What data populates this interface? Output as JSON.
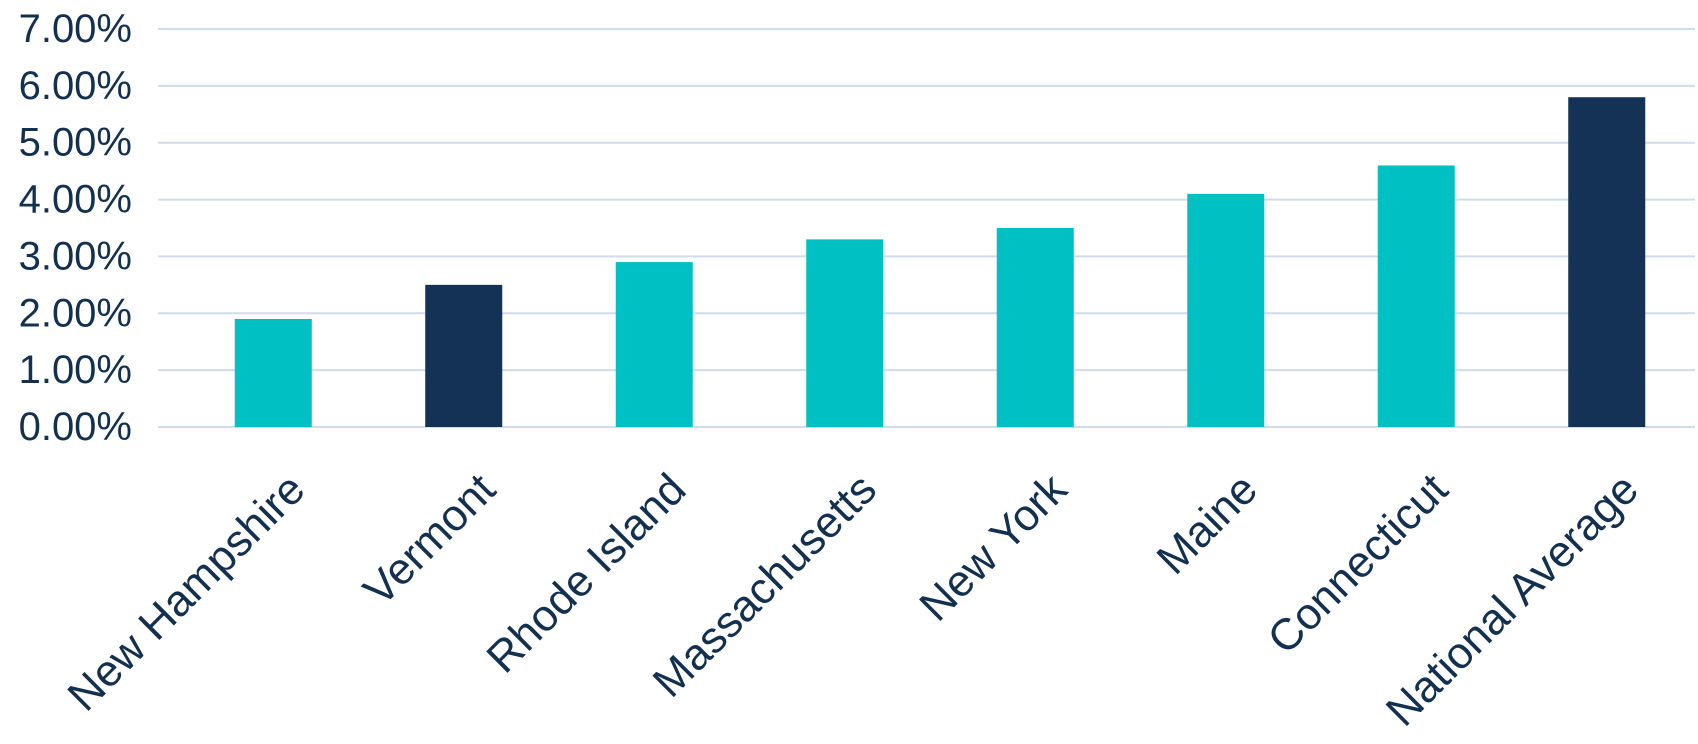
{
  "chart_data": {
    "type": "bar",
    "categories": [
      "New Hampshire",
      "Vermont",
      "Rhode Island",
      "Massachusetts",
      "New York",
      "Maine",
      "Connecticut",
      "National Average"
    ],
    "values": [
      1.9,
      2.5,
      2.9,
      3.3,
      3.5,
      4.1,
      4.6,
      5.8
    ],
    "value_unit": "percent",
    "bar_colors": [
      "#00c0c3",
      "#133255",
      "#00c0c3",
      "#00c0c3",
      "#00c0c3",
      "#00c0c3",
      "#00c0c3",
      "#133255"
    ],
    "highlighted_categories": [
      "Vermont",
      "National Average"
    ],
    "y_ticks": [
      "0.00%",
      "1.00%",
      "2.00%",
      "3.00%",
      "4.00%",
      "5.00%",
      "6.00%",
      "7.00%"
    ],
    "ylim": [
      0,
      7
    ],
    "grid": true,
    "legend": "none",
    "title": "",
    "xlabel": "",
    "ylabel": ""
  },
  "colors": {
    "primary_bar": "#00c0c3",
    "highlight_bar": "#133255",
    "gridline": "#cfdcec",
    "text": "#14304f",
    "background": "#ffffff"
  }
}
